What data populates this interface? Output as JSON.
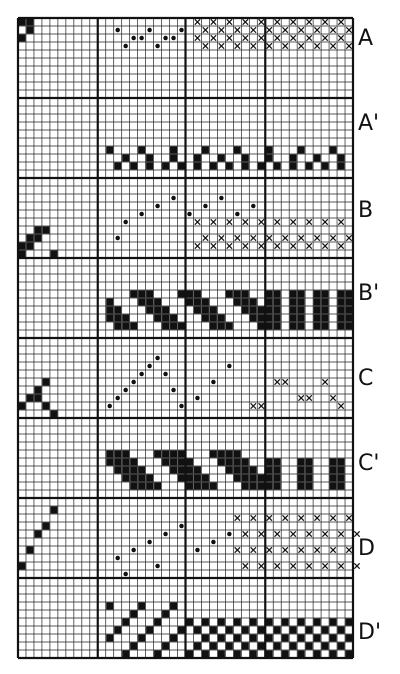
{
  "figure": {
    "rows": [
      {
        "label": "A",
        "kind": "notation"
      },
      {
        "label": "A'",
        "kind": "solid"
      },
      {
        "label": "B",
        "kind": "notation"
      },
      {
        "label": "B'",
        "kind": "solid"
      },
      {
        "label": "C",
        "kind": "notation"
      },
      {
        "label": "C'",
        "kind": "solid"
      },
      {
        "label": "D",
        "kind": "notation"
      },
      {
        "label": "D'",
        "kind": "solid"
      }
    ],
    "colors": {
      "ink": "#111111",
      "paper": "#ffffff",
      "grid": "#222222"
    }
  }
}
